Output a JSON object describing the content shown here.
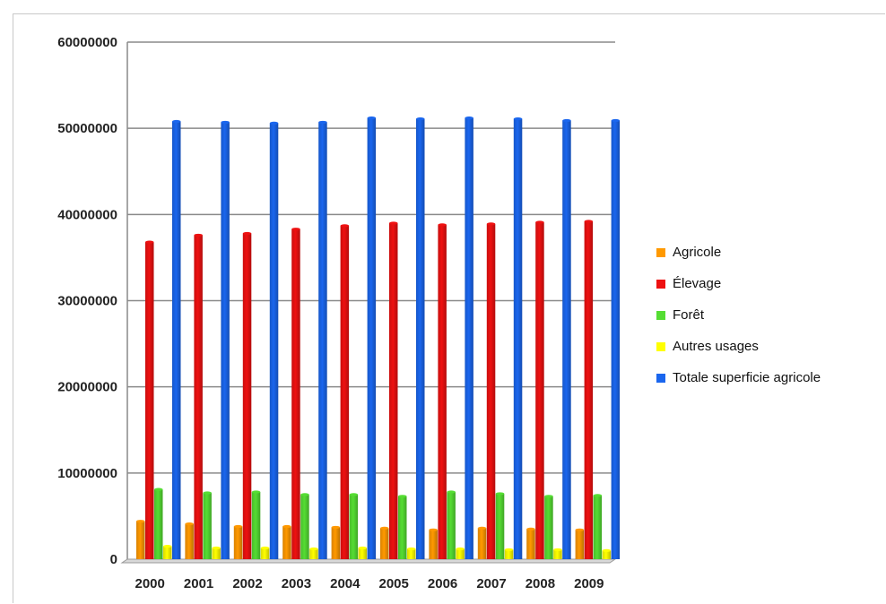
{
  "chart_data": {
    "type": "bar",
    "title": "",
    "xlabel": "",
    "ylabel": "",
    "ylim": [
      0,
      60000000
    ],
    "yticks": [
      "0",
      "10000000",
      "20000000",
      "30000000",
      "40000000",
      "50000000",
      "60000000"
    ],
    "categories": [
      "2000",
      "2001",
      "2002",
      "2003",
      "2004",
      "2005",
      "2006",
      "2007",
      "2008",
      "2009"
    ],
    "grid": true,
    "legend_position": "right",
    "series": [
      {
        "name": "Agricole",
        "color": "#ff9900",
        "values": [
          4400000,
          4100000,
          3800000,
          3800000,
          3700000,
          3600000,
          3400000,
          3600000,
          3500000,
          3400000
        ]
      },
      {
        "name": "Élevage",
        "color": "#ee1111",
        "values": [
          36800000,
          37600000,
          37800000,
          38300000,
          38700000,
          39000000,
          38800000,
          38900000,
          39100000,
          39200000
        ]
      },
      {
        "name": "Forêt",
        "color": "#55dd33",
        "values": [
          8100000,
          7700000,
          7800000,
          7500000,
          7500000,
          7300000,
          7800000,
          7600000,
          7300000,
          7400000
        ]
      },
      {
        "name": "Autres usages",
        "color": "#ffff00",
        "values": [
          1500000,
          1300000,
          1300000,
          1200000,
          1300000,
          1200000,
          1200000,
          1100000,
          1100000,
          1000000
        ]
      },
      {
        "name": "Totale superficie agricole",
        "color": "#1a66ee",
        "values": [
          50800000,
          50700000,
          50600000,
          50700000,
          51200000,
          51100000,
          51200000,
          51100000,
          50900000,
          50900000
        ]
      }
    ]
  }
}
